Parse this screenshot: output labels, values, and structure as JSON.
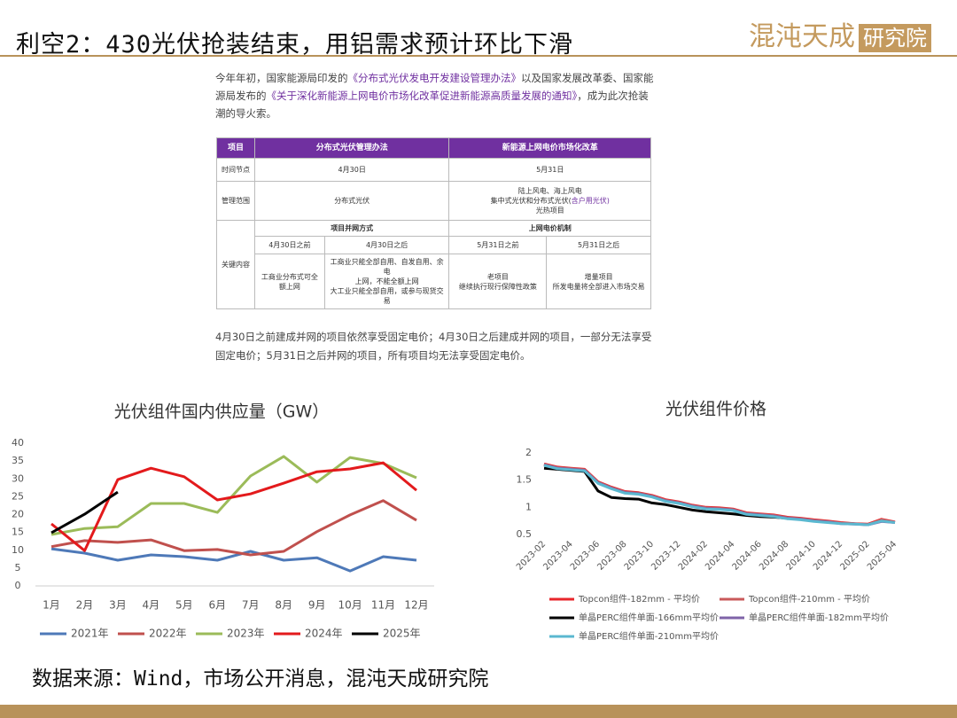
{
  "header": {
    "title": "利空2：430光伏抢装结束，用铝需求预计环比下滑",
    "logo_main": "混沌天成",
    "logo_box": "研究院"
  },
  "intro": [
    "今年年初，国家能源局印发的",
    "《分布式光伏发电开发建设管理办法》",
    "以及国家发展改革委、国家能源局发布的",
    "《关于深化新能源上网电价市场化改革促进新能源高质量发展的通知》",
    "，成为此次抢装潮的导火索。"
  ],
  "table": {
    "header": [
      "项目",
      "分布式光伏管理办法",
      "新能源上网电价市场化改革"
    ],
    "rows": [
      [
        "时间节点",
        "4月30日",
        "5月31日"
      ],
      [
        "管理范围",
        "分布式光伏",
        [
          "陆上风电、海上风电",
          "集中式光伏和分布式光伏(",
          "含户用光伏)",
          "光热项目"
        ]
      ]
    ],
    "key": {
      "label": "关键内容",
      "groups": [
        "项目并网方式",
        "上网电价机制"
      ],
      "subheads": [
        "4月30日之前",
        "4月30日之后",
        "5月31日之前",
        "5月31日之后"
      ],
      "cells": [
        [
          "工商业分布式可全",
          "额上网"
        ],
        [
          "工商业只能全部自用、自发自用、余电",
          "上网，不能全额上网",
          "大工业只能全部自用，或参与现货交易"
        ],
        [
          "老项目",
          "继续执行现行保障性政策"
        ],
        [
          "增量项目",
          "所发电量将全部进入市场交易"
        ]
      ]
    }
  },
  "note": "4月30日之前建成并网的项目依然享受固定电价；4月30日之后建成并网的项目，一部分无法享受固定电价；5月31日之后并网的项目，所有项目均无法享受固定电价。",
  "chart_data": [
    {
      "type": "line",
      "title": "光伏组件国内供应量（GW）",
      "categories": [
        "1月",
        "2月",
        "3月",
        "4月",
        "5月",
        "6月",
        "7月",
        "8月",
        "9月",
        "10月",
        "11月",
        "12月"
      ],
      "ylim": [
        0,
        40
      ],
      "yticks": [
        0,
        5,
        10,
        15,
        20,
        25,
        30,
        35,
        40
      ],
      "legend": "bottom",
      "series": [
        {
          "name": "2021年",
          "color": "#4e79b8",
          "values": [
            10.4,
            9.2,
            7.2,
            8.7,
            8.2,
            7.2,
            9.7,
            7.2,
            7.9,
            4.2,
            8.2,
            7.2
          ]
        },
        {
          "name": "2022年",
          "color": "#c0504d",
          "values": [
            11,
            12.7,
            12.2,
            12.9,
            9.9,
            10.2,
            8.7,
            9.7,
            15.2,
            19.9,
            23.9,
            18.4
          ]
        },
        {
          "name": "2023年",
          "color": "#9bbb59",
          "values": [
            14.4,
            16.1,
            16.6,
            23.1,
            23.1,
            20.6,
            30.8,
            36.3,
            29.1,
            36,
            34.3,
            30.3
          ]
        },
        {
          "name": "2024年",
          "color": "#e31a1c",
          "values": [
            17.4,
            9.9,
            29.8,
            33,
            30.6,
            24.1,
            25.8,
            28.8,
            32,
            32.8,
            34.5,
            26.8
          ]
        },
        {
          "name": "2025年",
          "color": "#000000",
          "values": [
            14.9,
            20.1,
            26.3,
            null,
            null,
            null,
            null,
            null,
            null,
            null,
            null,
            null
          ]
        }
      ]
    },
    {
      "type": "line",
      "title": "光伏组件价格",
      "categories": [
        "2023-02",
        null,
        "2023-04",
        null,
        "2023-06",
        null,
        "2023-08",
        null,
        "2023-10",
        null,
        "2023-12",
        null,
        "2024-02",
        null,
        "2024-04",
        null,
        "2024-06",
        null,
        "2024-08",
        null,
        "2024-10",
        null,
        "2024-12",
        null,
        "2025-02",
        null,
        "2025-04"
      ],
      "ylim": [
        0.5,
        2
      ],
      "yticks": [
        0.5,
        1,
        1.5,
        2
      ],
      "legend": "bottom",
      "series": [
        {
          "name": "Topcon组件-182mm - 平均价",
          "color": "#e8262b",
          "values": [
            1.8,
            1.74,
            1.72,
            1.7,
            1.47,
            1.37,
            1.29,
            1.27,
            1.22,
            1.14,
            1.1,
            1.04,
            1,
            0.99,
            0.97,
            0.9,
            0.88,
            0.86,
            0.82,
            0.8,
            0.77,
            0.75,
            0.72,
            0.7,
            0.69,
            0.78,
            0.73
          ]
        },
        {
          "name": "Topcon组件-210mm - 平均价",
          "color": "#c9595a",
          "values": [
            1.79,
            1.73,
            1.71,
            1.69,
            1.46,
            1.36,
            1.28,
            1.26,
            1.21,
            1.13,
            1.09,
            1.03,
            0.99,
            0.98,
            0.96,
            0.89,
            0.87,
            0.85,
            0.81,
            0.79,
            0.76,
            0.74,
            0.71,
            0.7,
            0.68,
            0.77,
            0.72
          ]
        },
        {
          "name": "单晶PERC组件单面-166mm平均价",
          "color": "#000000",
          "values": [
            1.72,
            1.7,
            1.68,
            1.66,
            1.3,
            1.18,
            1.16,
            1.15,
            1.08,
            1.05,
            1,
            0.95,
            0.92,
            0.9,
            0.88,
            0.85,
            0.83,
            0.82,
            0.8,
            null,
            null,
            null,
            null,
            null,
            null,
            null,
            null
          ]
        },
        {
          "name": "单晶PERC组件单面-182mm平均价",
          "color": "#7f63a8",
          "values": [
            1.78,
            1.72,
            1.7,
            1.68,
            1.45,
            1.35,
            1.27,
            1.25,
            1.2,
            1.12,
            1.08,
            1.02,
            0.98,
            0.97,
            0.95,
            0.88,
            0.86,
            0.84,
            0.8,
            0.78,
            0.75,
            0.73,
            0.7,
            0.69,
            0.68,
            0.74,
            0.72
          ]
        },
        {
          "name": "单晶PERC组件单面-210mm平均价",
          "color": "#5bb8d0",
          "values": [
            1.77,
            1.71,
            1.69,
            1.67,
            1.44,
            1.34,
            1.26,
            1.24,
            1.19,
            1.11,
            1.07,
            1.01,
            0.97,
            0.96,
            0.94,
            0.87,
            0.85,
            0.83,
            0.79,
            0.77,
            0.74,
            0.72,
            0.7,
            0.69,
            0.68,
            0.75,
            0.72
          ]
        }
      ]
    }
  ],
  "source": "数据来源：Wind，市场公开消息，混沌天成研究院"
}
